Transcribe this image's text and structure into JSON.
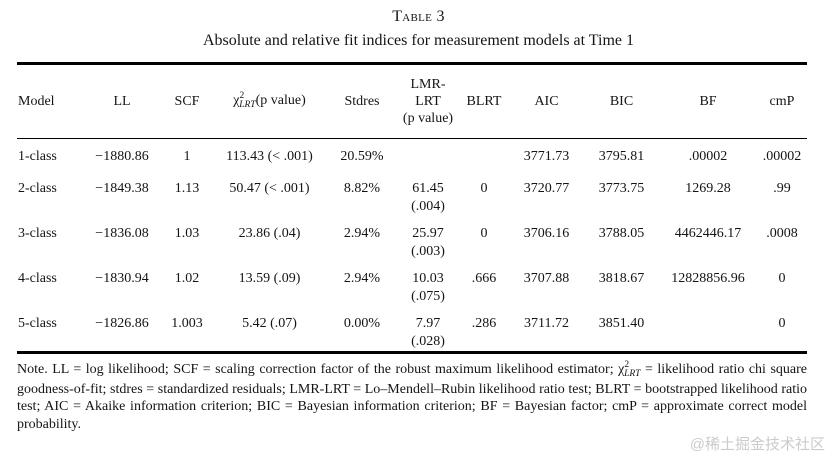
{
  "page": {
    "title": "Table 3",
    "subtitle": "Absolute and relative fit indices for measurement models at Time 1"
  },
  "table": {
    "headers": {
      "model": "Model",
      "ll": "LL",
      "scf": "SCF",
      "chi": {
        "symbol": "χ",
        "sup": "2",
        "sub": "LRT",
        "rest": "(p value)"
      },
      "stdres": "Stdres",
      "lmr": "LMR-\nLRT\n(p value)",
      "blrt": "BLRT",
      "aic": "AIC",
      "bic": "BIC",
      "bf": "BF",
      "cmp": "cmP"
    },
    "rows": [
      {
        "model": "1-class",
        "ll": "−1880.86",
        "scf": "1",
        "chi2": "113.43 (< .001)",
        "stdres": "20.59%",
        "lmr": "",
        "blrt": "",
        "aic": "3771.73",
        "bic": "3795.81",
        "bf": ".00002",
        "cmp": ".00002"
      },
      {
        "model": "2-class",
        "ll": "−1849.38",
        "scf": "1.13",
        "chi2": "50.47 (< .001)",
        "stdres": "8.82%",
        "lmr": "61.45\n(.004)",
        "blrt": "0",
        "aic": "3720.77",
        "bic": "3773.75",
        "bf": "1269.28",
        "cmp": ".99"
      },
      {
        "model": "3-class",
        "ll": "−1836.08",
        "scf": "1.03",
        "chi2": "23.86 (.04)",
        "stdres": "2.94%",
        "lmr": "25.97\n(.003)",
        "blrt": "0",
        "aic": "3706.16",
        "bic": "3788.05",
        "bf": "4462446.17",
        "cmp": ".0008"
      },
      {
        "model": "4-class",
        "ll": "−1830.94",
        "scf": "1.02",
        "chi2": "13.59 (.09)",
        "stdres": "2.94%",
        "lmr": "10.03\n(.075)",
        "blrt": ".666",
        "aic": "3707.88",
        "bic": "3818.67",
        "bf": "12828856.96",
        "cmp": "0"
      },
      {
        "model": "5-class",
        "ll": "−1826.86",
        "scf": "1.003",
        "chi2": "5.42 (.07)",
        "stdres": "0.00%",
        "lmr": "7.97\n(.028)",
        "blrt": ".286",
        "aic": "3711.72",
        "bic": "3851.40",
        "bf": "",
        "cmp": "0"
      }
    ]
  },
  "note": {
    "label": "Note.",
    "part1": " LL = log likelihood; SCF = scaling correction factor of the robust maximum likelihood estimator; ",
    "chi": {
      "symbol": "χ",
      "sup": "2",
      "sub": "LRT"
    },
    "part2": " = likelihood ratio chi square goodness-of-fit; stdres = standardized residuals; LMR-LRT = Lo–Mendell–Rubin likelihood ratio test; BLRT = bootstrapped likelihood ratio test; AIC = Akaike information criterion; BIC = Bayesian information criterion; BF = Bayesian factor; cmP = approximate correct model probability."
  },
  "watermark": {
    "text": "@稀土掘金技术社区"
  }
}
